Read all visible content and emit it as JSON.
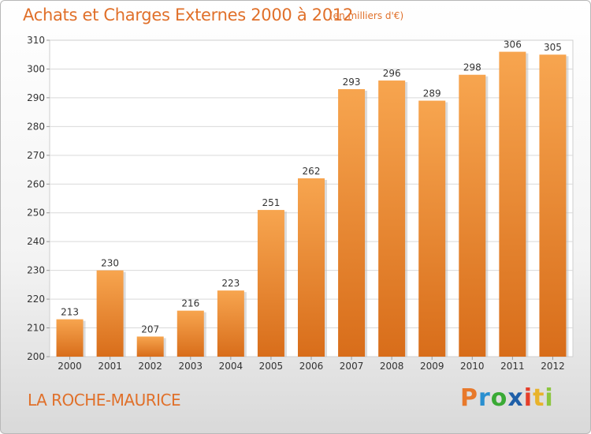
{
  "header": {
    "title": "Achats et Charges Externes 2000 à 2012",
    "unit": "(en milliers d'€)"
  },
  "footer": {
    "place": "LA ROCHE-MAURICE",
    "logo": {
      "letters": [
        "P",
        "r",
        "o",
        "x",
        "i",
        "t",
        "i"
      ],
      "colors": [
        "#e8792b",
        "#2a8fd0",
        "#3aaa35",
        "#1f5fa8",
        "#e53e2a",
        "#e8b32b",
        "#8cc63f"
      ]
    }
  },
  "chart_data": {
    "type": "bar",
    "categories": [
      "2000",
      "2001",
      "2002",
      "2003",
      "2004",
      "2005",
      "2006",
      "2007",
      "2008",
      "2009",
      "2010",
      "2011",
      "2012"
    ],
    "values": [
      213,
      230,
      207,
      216,
      223,
      251,
      262,
      293,
      296,
      289,
      298,
      306,
      305
    ],
    "ylim": [
      200,
      310
    ],
    "yticks": [
      200,
      210,
      220,
      230,
      240,
      250,
      260,
      270,
      280,
      290,
      300,
      310
    ],
    "grid": true,
    "bar_color_top": "#f7a54f",
    "bar_color_bottom": "#d86d1a"
  }
}
